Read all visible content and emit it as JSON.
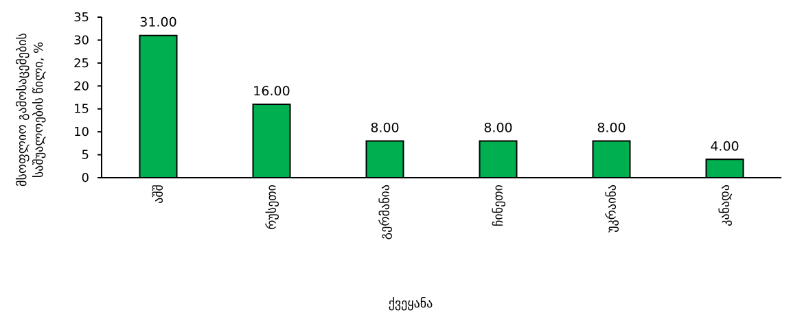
{
  "chart_data": {
    "type": "bar",
    "title": "",
    "categories": [
      "აშშ",
      "რუსეთი",
      "გერმანია",
      "ჩინეთი",
      "უკრაინა",
      "კანადა"
    ],
    "values": [
      31,
      16,
      8,
      8,
      8,
      4
    ],
    "data_labels": [
      "31.00",
      "16.00",
      "8.00",
      "8.00",
      "8.00",
      "4.00"
    ],
    "xlabel": "ქვეყანა",
    "ylabel_lines": [
      "მსოფლიო გამოსაცემების",
      "საშუალოების წილი, %"
    ],
    "ylim": [
      0,
      35
    ],
    "yticks": [
      0,
      5,
      10,
      15,
      20,
      25,
      30,
      35
    ],
    "grid": false,
    "legend": "none",
    "bar_color": "#00b050",
    "bar_edge_color": "#000000"
  }
}
